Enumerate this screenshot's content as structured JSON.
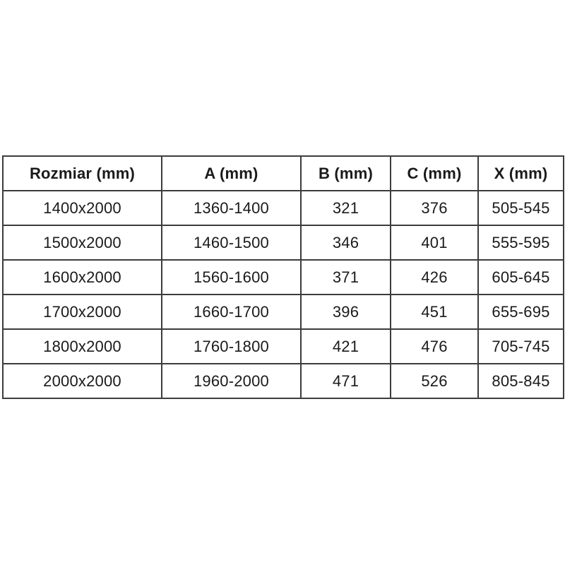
{
  "page": {
    "background_color": "#ffffff",
    "border_color": "#3c3c3c",
    "text_color": "#1a1a1a"
  },
  "table": {
    "columns": [
      "Rozmiar (mm)",
      "A (mm)",
      "B (mm)",
      "C (mm)",
      "X (mm)"
    ],
    "rows": [
      [
        "1400x2000",
        "1360-1400",
        "321",
        "376",
        "505-545"
      ],
      [
        "1500x2000",
        "1460-1500",
        "346",
        "401",
        "555-595"
      ],
      [
        "1600x2000",
        "1560-1600",
        "371",
        "426",
        "605-645"
      ],
      [
        "1700x2000",
        "1660-1700",
        "396",
        "451",
        "655-695"
      ],
      [
        "1800x2000",
        "1760-1800",
        "421",
        "476",
        "705-745"
      ],
      [
        "2000x2000",
        "1960-2000",
        "471",
        "526",
        "805-845"
      ]
    ]
  },
  "chart_data": {
    "type": "table",
    "columns": [
      "Rozmiar (mm)",
      "A (mm)",
      "B (mm)",
      "C (mm)",
      "X (mm)"
    ],
    "rows": [
      [
        "1400x2000",
        "1360-1400",
        "321",
        "376",
        "505-545"
      ],
      [
        "1500x2000",
        "1460-1500",
        "346",
        "401",
        "555-595"
      ],
      [
        "1600x2000",
        "1560-1600",
        "371",
        "426",
        "605-645"
      ],
      [
        "1700x2000",
        "1660-1700",
        "396",
        "451",
        "655-695"
      ],
      [
        "1800x2000",
        "1760-1800",
        "421",
        "476",
        "705-745"
      ],
      [
        "2000x2000",
        "1960-2000",
        "471",
        "526",
        "805-845"
      ]
    ],
    "notes": {
      "header_bold": true,
      "grid": "all-borders",
      "alignment": "center"
    }
  }
}
